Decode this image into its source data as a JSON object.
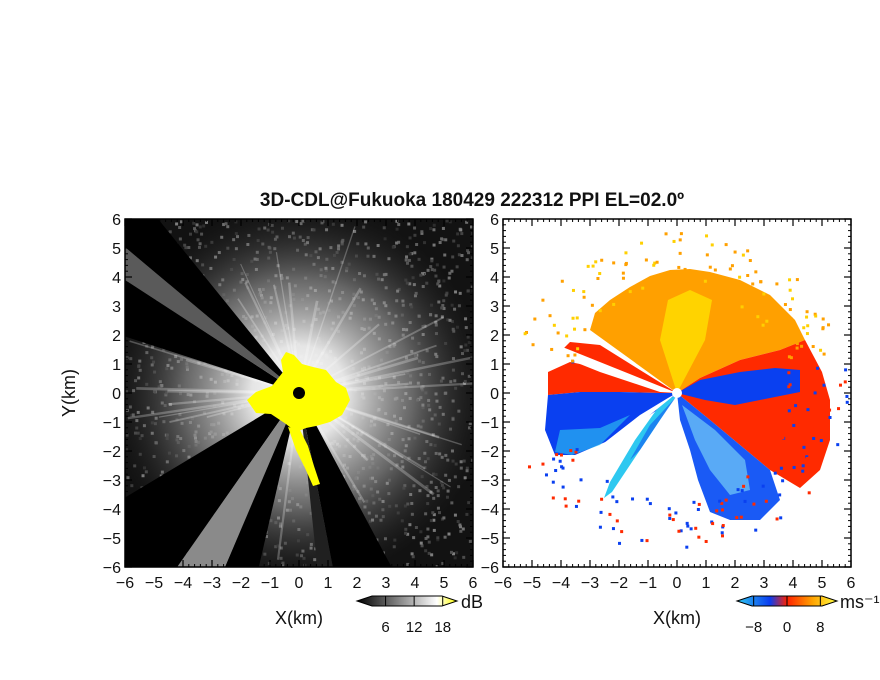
{
  "chart_data": [
    {
      "type": "heatmap",
      "title": "3D-CDL@Fukuoka 180429 222312 PPI EL=02.0º",
      "xlabel": "X(km)",
      "ylabel": "Y(km)",
      "xlim": [
        -6,
        6
      ],
      "ylim": [
        -6,
        6
      ],
      "x_ticks": [
        "-6",
        "-5",
        "-4",
        "-3",
        "-2",
        "-1",
        "0",
        "1",
        "2",
        "3",
        "4",
        "5",
        "6"
      ],
      "y_ticks": [
        "6",
        "5",
        "4",
        "3",
        "2",
        "1",
        "0",
        "-1",
        "-2",
        "-3",
        "-4",
        "-5",
        "-6"
      ],
      "colorbar": {
        "unit": "dB",
        "ticks": [
          "6",
          "12",
          "18"
        ],
        "range": [
          0,
          21
        ],
        "colors": [
          "#000000",
          "#ffffff",
          "#ffff00"
        ],
        "saturation_color": "#ffff00"
      },
      "colors": {
        "background": "#101010",
        "bright_center": "#ffffff",
        "saturated": "#ffff00",
        "blocked_sector": "#000000"
      }
    },
    {
      "type": "heatmap",
      "xlabel": "X(km)",
      "ylabel": "",
      "xlim": [
        -6,
        6
      ],
      "ylim": [
        -6,
        6
      ],
      "x_ticks": [
        "-6",
        "-5",
        "-4",
        "-3",
        "-2",
        "-1",
        "0",
        "1",
        "2",
        "3",
        "4",
        "5",
        "6"
      ],
      "y_ticks": [
        "6",
        "5",
        "4",
        "3",
        "2",
        "1",
        "0",
        "-1",
        "-2",
        "-3",
        "-4",
        "-5",
        "-6"
      ],
      "colorbar": {
        "unit": "ms⁻¹",
        "ticks": [
          "-8",
          "0",
          "8"
        ],
        "range": [
          -12,
          12
        ],
        "colors": [
          "#2ec8f0",
          "#0a3cf0",
          "#ff2000",
          "#ffa000",
          "#ffff40"
        ]
      },
      "colors": {
        "approaching": "#0a40f0",
        "receding": "#ff2a00",
        "far_receding": "#ffb000",
        "no_data": "#ffffff"
      }
    }
  ]
}
